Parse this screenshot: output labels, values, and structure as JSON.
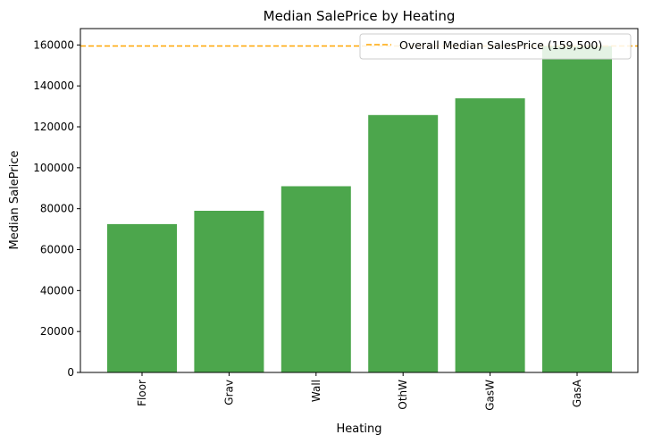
{
  "chart_data": {
    "type": "bar",
    "title": "Median SalePrice by Heating",
    "xlabel": "Heating",
    "ylabel": "Median SalePrice",
    "categories": [
      "Floor",
      "Grav",
      "Wall",
      "OthW",
      "GasW",
      "GasA"
    ],
    "values": [
      72500,
      79000,
      91000,
      125750,
      133900,
      159500
    ],
    "ylim": [
      0,
      168000
    ],
    "yticks": [
      0,
      20000,
      40000,
      60000,
      80000,
      100000,
      120000,
      140000,
      160000
    ],
    "bar_color": "#4ca64c",
    "reference_line": {
      "value": 159500,
      "label": "Overall Median SalesPrice (159,500)",
      "color": "#ffa500",
      "style": "dashed"
    },
    "legend": "top-right",
    "grid": false
  }
}
